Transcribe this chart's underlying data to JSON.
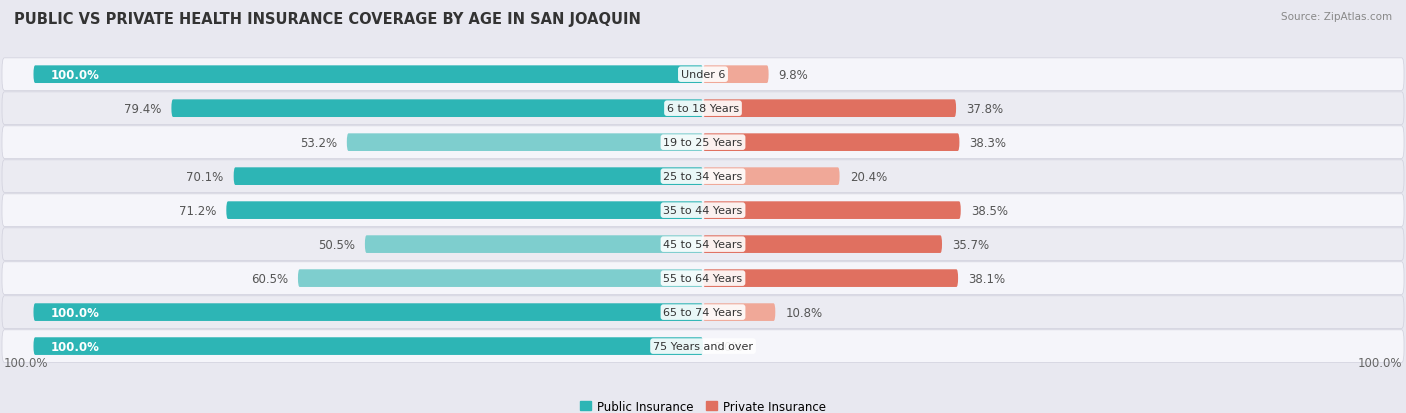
{
  "title": "PUBLIC VS PRIVATE HEALTH INSURANCE COVERAGE BY AGE IN SAN JOAQUIN",
  "source": "Source: ZipAtlas.com",
  "categories": [
    "Under 6",
    "6 to 18 Years",
    "19 to 25 Years",
    "25 to 34 Years",
    "35 to 44 Years",
    "45 to 54 Years",
    "55 to 64 Years",
    "65 to 74 Years",
    "75 Years and over"
  ],
  "public_values": [
    100.0,
    79.4,
    53.2,
    70.1,
    71.2,
    50.5,
    60.5,
    100.0,
    100.0
  ],
  "private_values": [
    9.8,
    37.8,
    38.3,
    20.4,
    38.5,
    35.7,
    38.1,
    10.8,
    0.0
  ],
  "public_color_full": "#2db5b5",
  "public_color_light": "#7ecece",
  "private_color_full": "#e07060",
  "private_color_light": "#f0a898",
  "bg_color": "#e8e8f0",
  "row_bg_even": "#f5f5fa",
  "row_bg_odd": "#ebebf2",
  "legend_public": "Public Insurance",
  "legend_private": "Private Insurance",
  "axis_label_left": "100.0%",
  "axis_label_right": "100.0%",
  "max_val": 100.0,
  "bar_height": 0.52,
  "title_fontsize": 10.5,
  "label_fontsize": 8.5,
  "category_fontsize": 8.0,
  "legend_fontsize": 8.5,
  "source_fontsize": 7.5
}
